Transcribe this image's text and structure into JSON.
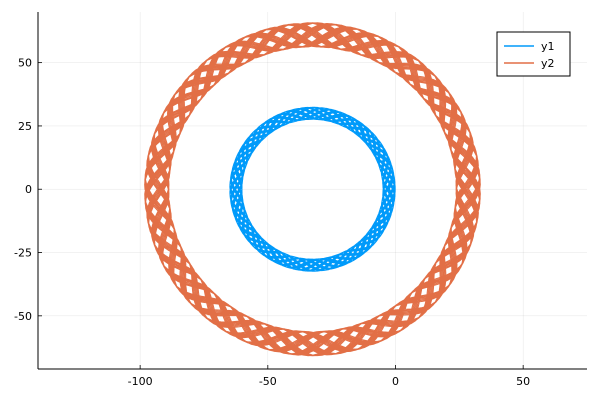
{
  "chart_data": {
    "type": "line",
    "title": "",
    "xlabel": "",
    "ylabel": "",
    "xlim": [
      -140,
      75
    ],
    "ylim": [
      -71,
      70
    ],
    "xticks": [
      -100,
      -50,
      0,
      50
    ],
    "yticks": [
      -50,
      -25,
      0,
      25,
      50
    ],
    "xtick_labels": [
      "-100",
      "-50",
      "0",
      "50"
    ],
    "ytick_labels": [
      "-50",
      "-25",
      "0",
      "25",
      "50"
    ],
    "grid": true,
    "legend_position": "top-right",
    "series": [
      {
        "name": "y1",
        "color": "#009AFA",
        "shape": "annulus",
        "center": [
          -32.5,
          0
        ],
        "radius_outer": 32.5,
        "radius_inner": 27.5,
        "turns": 22
      },
      {
        "name": "y2",
        "color": "#E26F46",
        "shape": "annulus",
        "center": [
          -32.5,
          0
        ],
        "radius_outer": 66,
        "radius_inner": 56,
        "turns": 30
      }
    ]
  }
}
